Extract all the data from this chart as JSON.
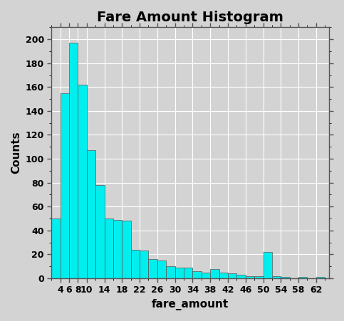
{
  "title": "Fare Amount Histogram",
  "xlabel": "fare_amount",
  "ylabel": "Counts",
  "bar_color": "#00EEEE",
  "bar_edge_color": "#555555",
  "background_color": "#D3D3D3",
  "plot_bg_color": "#D3D3D3",
  "bin_edges": [
    2,
    4,
    6,
    8,
    10,
    12,
    14,
    16,
    18,
    20,
    22,
    24,
    26,
    28,
    30,
    32,
    34,
    36,
    38,
    40,
    42,
    44,
    46,
    48,
    50,
    52,
    54,
    56,
    58,
    60,
    62,
    64,
    66
  ],
  "counts": [
    50,
    155,
    197,
    162,
    107,
    78,
    50,
    49,
    48,
    24,
    23,
    16,
    15,
    10,
    9,
    9,
    6,
    5,
    8,
    5,
    4,
    3,
    2,
    2,
    22,
    2,
    1,
    0,
    1,
    0,
    1,
    0
  ],
  "xticks": [
    4,
    6,
    8,
    10,
    14,
    18,
    22,
    26,
    30,
    34,
    38,
    42,
    46,
    50,
    54,
    58,
    62
  ],
  "yticks": [
    0,
    20,
    40,
    60,
    80,
    100,
    120,
    140,
    160,
    180,
    200
  ],
  "ylim": [
    0,
    210
  ],
  "xlim": [
    2,
    65
  ],
  "title_fontsize": 14,
  "axis_label_fontsize": 11,
  "tick_fontsize": 9
}
